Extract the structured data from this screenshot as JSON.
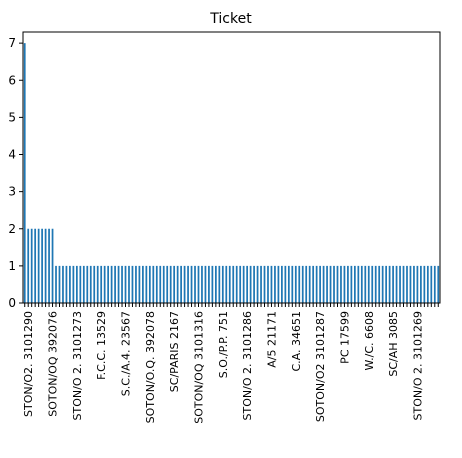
{
  "chart_data": {
    "type": "bar",
    "title": "Ticket",
    "xlabel": "",
    "ylabel": "",
    "ylim": [
      0,
      7.3
    ],
    "yticks": [
      0,
      1,
      2,
      3,
      4,
      5,
      6,
      7
    ],
    "bar_color": "#1f77b4",
    "grid": false,
    "legend": "none",
    "count_groups": [
      {
        "value": 7,
        "count": 1
      },
      {
        "value": 2,
        "count": 8
      },
      {
        "value": 1,
        "count": 111
      }
    ],
    "visible_tick_labels": [
      "STON/O2. 3101290",
      "SOTON/OQ 392076",
      "STON/O 2. 3101273",
      "F.C.C. 13529",
      "S.C./A.4. 23567",
      "SOTON/O.Q. 392078",
      "SC/PARIS 2167",
      "SOTON/OQ 3101316",
      "S.O./P.P. 751",
      "STON/O 2. 3101286",
      "A/5 21171",
      "C.A. 34651",
      "SOTON/O2 3101287",
      "PC 17599",
      "W./C. 6608",
      "SC/AH 3085",
      "STON/O 2. 3101269"
    ]
  }
}
